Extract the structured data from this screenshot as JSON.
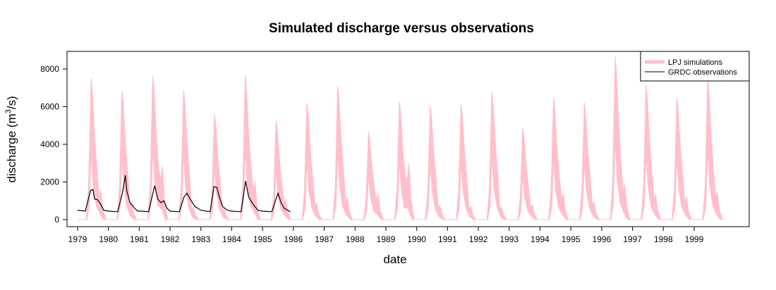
{
  "chart_data": {
    "type": "area",
    "title": "Simulated discharge versus observations",
    "xlabel": "date",
    "ylabel": "discharge (m",
    "ylabel_sup": "3",
    "ylabel_tail": "/s)",
    "ylim": [
      0,
      8800
    ],
    "yticks": [
      0,
      2000,
      4000,
      6000,
      8000
    ],
    "xlim": [
      1979.0,
      2000.0
    ],
    "xticks": [
      "1979",
      "1980",
      "1981",
      "1982",
      "1983",
      "1984",
      "1985",
      "1986",
      "1987",
      "1988",
      "1989",
      "1990",
      "1991",
      "1992",
      "1993",
      "1994",
      "1995",
      "1996",
      "1997",
      "1998",
      "1999"
    ],
    "grid": false,
    "legend_position": "top-right",
    "colors": {
      "simulation": "#ffc0cb",
      "observation": "#000000"
    },
    "series": [
      {
        "name": "LPJ simulations",
        "kind": "band",
        "years": [
          1979,
          1980,
          1981,
          1982,
          1983,
          1984,
          1985,
          1986,
          1987,
          1988,
          1989,
          1990,
          1991,
          1992,
          1993,
          1994,
          1995,
          1996,
          1997,
          1998,
          1999
        ],
        "annual_peak": [
          7500,
          6850,
          7650,
          6900,
          5600,
          7700,
          5250,
          6200,
          7100,
          4650,
          6250,
          6050,
          6100,
          6800,
          4850,
          6500,
          6200,
          8650,
          7150,
          6500,
          7500
        ],
        "secondary_peak": [
          1600,
          900,
          2850,
          700,
          600,
          2050,
          1100,
          900,
          1200,
          1350,
          2950,
          800,
          700,
          700,
          800,
          1400,
          950,
          1850,
          1350,
          1200,
          1450
        ]
      },
      {
        "name": "GRDC observations",
        "kind": "line",
        "x": [
          1979.0,
          1979.25,
          1979.42,
          1979.5,
          1979.55,
          1979.65,
          1979.75,
          1979.85,
          1980.0,
          1980.3,
          1980.45,
          1980.55,
          1980.6,
          1980.7,
          1980.85,
          1980.95,
          1981.1,
          1981.3,
          1981.5,
          1981.6,
          1981.7,
          1981.8,
          1981.9,
          1982.0,
          1982.3,
          1982.45,
          1982.55,
          1982.65,
          1982.8,
          1983.0,
          1983.3,
          1983.42,
          1983.52,
          1983.6,
          1983.7,
          1983.85,
          1984.0,
          1984.3,
          1984.45,
          1984.55,
          1984.7,
          1984.85,
          1985.0,
          1985.3,
          1985.5,
          1985.6,
          1985.7,
          1985.9
        ],
        "y": [
          500,
          450,
          1550,
          1600,
          1100,
          1050,
          800,
          500,
          450,
          420,
          1400,
          2350,
          1500,
          900,
          600,
          450,
          450,
          420,
          1800,
          1100,
          900,
          1000,
          600,
          450,
          420,
          1200,
          1400,
          1100,
          700,
          500,
          420,
          1750,
          1700,
          1200,
          700,
          500,
          450,
          420,
          2050,
          1200,
          800,
          500,
          450,
          420,
          1400,
          900,
          600,
          420
        ]
      }
    ]
  }
}
